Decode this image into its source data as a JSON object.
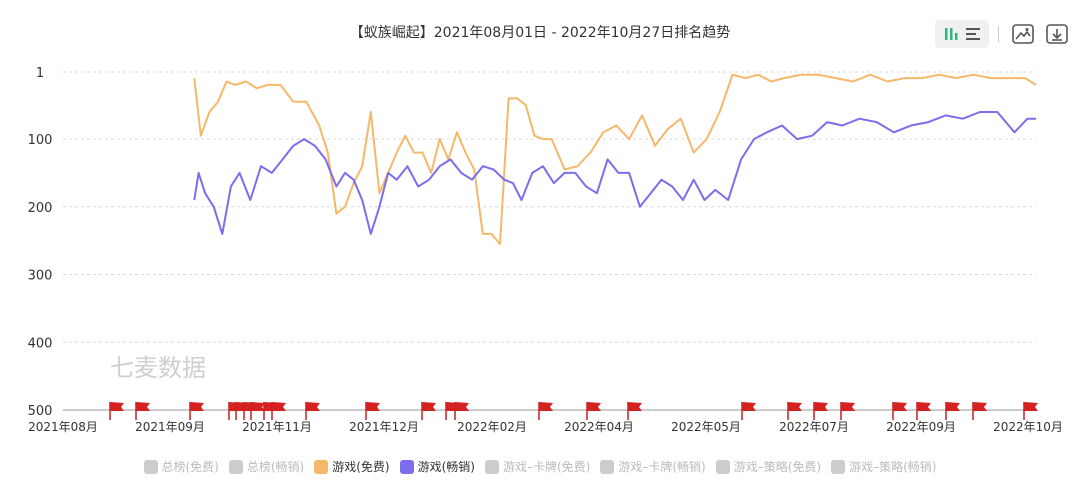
{
  "chart_data": {
    "type": "line",
    "title": "【蚁族崛起】2021年08月01日 - 2022年10月27日排名趋势",
    "watermark": "七麦数据",
    "y_axis": {
      "inverted": true,
      "range": [
        1,
        500
      ],
      "ticks": [
        1,
        100,
        200,
        300,
        400,
        500
      ]
    },
    "x_axis": {
      "range": [
        "2021-08-01",
        "2022-10-27"
      ],
      "tick_labels": [
        "2021年08月",
        "2021年09月",
        "2021年11月",
        "2021年12月",
        "2022年02月",
        "2022年04月",
        "2022年05月",
        "2022年07月",
        "2022年09月",
        "2022年10月"
      ]
    },
    "series": [
      {
        "name": "游戏(免费)",
        "color": "#f5b86b",
        "x": [
          "2021-10-01",
          "2021-10-04",
          "2021-10-08",
          "2021-10-12",
          "2021-10-16",
          "2021-10-20",
          "2021-10-25",
          "2021-10-30",
          "2021-11-04",
          "2021-11-10",
          "2021-11-16",
          "2021-11-22",
          "2021-11-28",
          "2021-12-02",
          "2021-12-06",
          "2021-12-10",
          "2021-12-14",
          "2021-12-18",
          "2021-12-22",
          "2021-12-26",
          "2021-12-30",
          "2022-01-03",
          "2022-01-07",
          "2022-01-11",
          "2022-01-15",
          "2022-01-19",
          "2022-01-23",
          "2022-01-27",
          "2022-01-31",
          "2022-02-04",
          "2022-02-08",
          "2022-02-12",
          "2022-02-16",
          "2022-02-20",
          "2022-02-24",
          "2022-02-28",
          "2022-03-04",
          "2022-03-08",
          "2022-03-12",
          "2022-03-16",
          "2022-03-22",
          "2022-03-28",
          "2022-04-03",
          "2022-04-09",
          "2022-04-15",
          "2022-04-21",
          "2022-04-27",
          "2022-05-03",
          "2022-05-09",
          "2022-05-15",
          "2022-05-21",
          "2022-05-27",
          "2022-06-02",
          "2022-06-08",
          "2022-06-14",
          "2022-06-20",
          "2022-06-26",
          "2022-07-02",
          "2022-07-10",
          "2022-07-18",
          "2022-07-26",
          "2022-08-03",
          "2022-08-11",
          "2022-08-19",
          "2022-08-27",
          "2022-09-04",
          "2022-09-12",
          "2022-09-20",
          "2022-09-28",
          "2022-10-06",
          "2022-10-14",
          "2022-10-22",
          "2022-10-27"
        ],
        "values": [
          10,
          95,
          60,
          45,
          15,
          20,
          15,
          25,
          20,
          20,
          45,
          45,
          80,
          120,
          210,
          200,
          165,
          140,
          60,
          180,
          150,
          120,
          95,
          120,
          120,
          150,
          100,
          130,
          90,
          120,
          145,
          240,
          240,
          255,
          40,
          40,
          50,
          95,
          100,
          100,
          145,
          140,
          120,
          90,
          80,
          100,
          65,
          110,
          85,
          70,
          120,
          100,
          60,
          5,
          10,
          5,
          15,
          10,
          5,
          5,
          10,
          15,
          5,
          15,
          10,
          10,
          5,
          10,
          5,
          10,
          10,
          10,
          20
        ]
      },
      {
        "name": "游戏(畅销)",
        "color": "#7b6ded",
        "x": [
          "2021-10-01",
          "2021-10-03",
          "2021-10-06",
          "2021-10-10",
          "2021-10-14",
          "2021-10-18",
          "2021-10-22",
          "2021-10-27",
          "2021-11-01",
          "2021-11-06",
          "2021-11-11",
          "2021-11-16",
          "2021-11-21",
          "2021-11-26",
          "2021-12-01",
          "2021-12-06",
          "2021-12-10",
          "2021-12-14",
          "2021-12-18",
          "2021-12-22",
          "2021-12-26",
          "2021-12-30",
          "2022-01-03",
          "2022-01-08",
          "2022-01-13",
          "2022-01-18",
          "2022-01-23",
          "2022-01-28",
          "2022-02-02",
          "2022-02-07",
          "2022-02-12",
          "2022-02-17",
          "2022-02-22",
          "2022-02-26",
          "2022-03-02",
          "2022-03-07",
          "2022-03-12",
          "2022-03-17",
          "2022-03-22",
          "2022-03-27",
          "2022-04-01",
          "2022-04-06",
          "2022-04-11",
          "2022-04-16",
          "2022-04-21",
          "2022-04-26",
          "2022-05-01",
          "2022-05-06",
          "2022-05-11",
          "2022-05-16",
          "2022-05-21",
          "2022-05-26",
          "2022-05-31",
          "2022-06-06",
          "2022-06-12",
          "2022-06-18",
          "2022-06-24",
          "2022-07-01",
          "2022-07-08",
          "2022-07-15",
          "2022-07-22",
          "2022-07-29",
          "2022-08-06",
          "2022-08-14",
          "2022-08-22",
          "2022-08-30",
          "2022-09-07",
          "2022-09-15",
          "2022-09-23",
          "2022-10-01",
          "2022-10-09",
          "2022-10-17",
          "2022-10-23",
          "2022-10-27"
        ],
        "values": [
          190,
          150,
          180,
          200,
          240,
          170,
          150,
          190,
          140,
          150,
          130,
          110,
          100,
          110,
          130,
          170,
          150,
          160,
          190,
          240,
          200,
          150,
          160,
          140,
          170,
          160,
          140,
          130,
          150,
          160,
          140,
          145,
          160,
          165,
          190,
          150,
          140,
          165,
          150,
          150,
          170,
          180,
          130,
          150,
          150,
          200,
          180,
          160,
          170,
          190,
          160,
          190,
          175,
          190,
          130,
          100,
          90,
          80,
          100,
          95,
          75,
          80,
          70,
          75,
          90,
          80,
          75,
          65,
          70,
          60,
          60,
          90,
          70,
          70
        ]
      }
    ],
    "events_count": 28
  },
  "legend": [
    {
      "label": "总榜(免费)",
      "color": "#cccccc",
      "active": false,
      "text_color": "#bbbbbb"
    },
    {
      "label": "总榜(畅销)",
      "color": "#cccccc",
      "active": false,
      "text_color": "#bbbbbb"
    },
    {
      "label": "游戏(免费)",
      "color": "#f5b86b",
      "active": true,
      "text_color": "#333333"
    },
    {
      "label": "游戏(畅销)",
      "color": "#7b6ded",
      "active": true,
      "text_color": "#333333"
    },
    {
      "label": "游戏–卡牌(免费)",
      "color": "#cccccc",
      "active": false,
      "text_color": "#bbbbbb"
    },
    {
      "label": "游戏–卡牌(畅销)",
      "color": "#cccccc",
      "active": false,
      "text_color": "#bbbbbb"
    },
    {
      "label": "游戏–策略(免费)",
      "color": "#cccccc",
      "active": false,
      "text_color": "#bbbbbb"
    },
    {
      "label": "游戏–策略(畅销)",
      "color": "#cccccc",
      "active": false,
      "text_color": "#bbbbbb"
    }
  ],
  "toolbar": {
    "icons": [
      "bar-view-icon",
      "list-view-icon",
      "image-save-icon",
      "download-icon"
    ]
  }
}
